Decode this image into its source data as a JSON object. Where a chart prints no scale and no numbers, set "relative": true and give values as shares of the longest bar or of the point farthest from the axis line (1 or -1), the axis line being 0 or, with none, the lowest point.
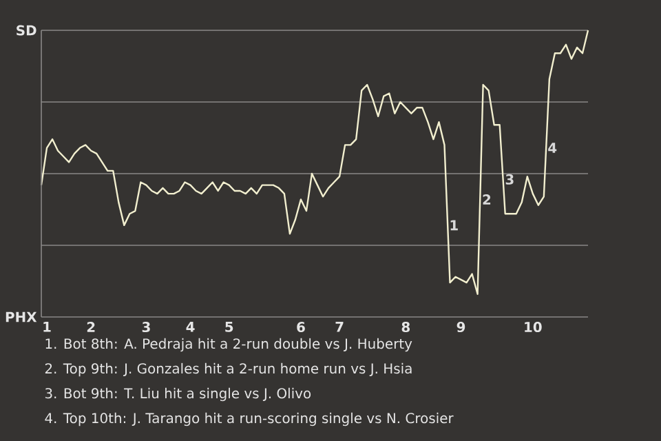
{
  "chart_data": {
    "type": "line",
    "relative": true,
    "categories": [
      null,
      "1",
      null,
      null,
      null,
      null,
      null,
      null,
      null,
      "2",
      null,
      null,
      null,
      null,
      null,
      null,
      null,
      null,
      null,
      "3",
      null,
      null,
      null,
      null,
      null,
      null,
      null,
      "4",
      null,
      null,
      null,
      null,
      null,
      null,
      "5",
      null,
      null,
      null,
      null,
      null,
      null,
      null,
      null,
      null,
      null,
      null,
      null,
      "6",
      null,
      null,
      null,
      null,
      null,
      null,
      "7",
      null,
      null,
      null,
      null,
      null,
      null,
      null,
      null,
      null,
      null,
      null,
      "8",
      null,
      null,
      null,
      null,
      null,
      null,
      null,
      null,
      null,
      "9",
      null,
      null,
      null,
      null,
      null,
      null,
      null,
      null,
      null,
      null,
      null,
      null,
      "10",
      null,
      null,
      null,
      null,
      null,
      null,
      null,
      null,
      null,
      null
    ],
    "series": [
      {
        "color": "#f2efcf",
        "values": [
          0.46,
          0.59,
          0.62,
          0.58,
          0.56,
          0.54,
          0.57,
          0.59,
          0.6,
          0.58,
          0.57,
          0.54,
          0.51,
          0.51,
          0.4,
          0.32,
          0.36,
          0.37,
          0.47,
          0.46,
          0.44,
          0.43,
          0.45,
          0.43,
          0.43,
          0.44,
          0.47,
          0.46,
          0.44,
          0.43,
          0.45,
          0.47,
          0.44,
          0.47,
          0.46,
          0.44,
          0.44,
          0.43,
          0.45,
          0.43,
          0.46,
          0.46,
          0.46,
          0.45,
          0.43,
          0.29,
          0.34,
          0.41,
          0.37,
          0.5,
          0.46,
          0.42,
          0.45,
          0.47,
          0.49,
          0.6,
          0.6,
          0.62,
          0.79,
          0.81,
          0.76,
          0.7,
          0.77,
          0.78,
          0.71,
          0.75,
          0.73,
          0.71,
          0.73,
          0.73,
          0.68,
          0.62,
          0.68,
          0.6,
          0.12,
          0.14,
          0.13,
          0.12,
          0.15,
          0.08,
          0.81,
          0.79,
          0.67,
          0.67,
          0.36,
          0.36,
          0.36,
          0.4,
          0.49,
          0.43,
          0.39,
          0.42,
          0.83,
          0.92,
          0.92,
          0.95,
          0.9,
          0.94,
          0.92,
          1.0
        ]
      }
    ],
    "ref_lines": [
      {
        "axis": "y",
        "value": 0.25,
        "color": "#8a8987"
      },
      {
        "axis": "y",
        "value": 0.5,
        "color": "#8a8987"
      },
      {
        "axis": "y",
        "value": 0.75,
        "color": "#8a8987"
      },
      {
        "axis": "y",
        "value": 1,
        "color": "#8a8987"
      }
    ],
    "annotations": [
      "SD",
      "PHX",
      {
        "text": "1",
        "y": 0.32
      },
      {
        "text": "2",
        "y": 0.41
      },
      {
        "text": "3",
        "y": 0.48
      },
      {
        "text": "4",
        "y": 0.59
      },
      "1. Bot 8th: A. Pedraja hit a 2-run double vs J. Huberty",
      "2. Top 9th: J. Gonzales hit a 2-run home run vs J. Hsia",
      "3. Bot 9th: T. Liu hit a single vs J. Olivo",
      "4. Top 10th: J. Tarango hit a run-scoring single vs N. Crosier"
    ]
  }
}
